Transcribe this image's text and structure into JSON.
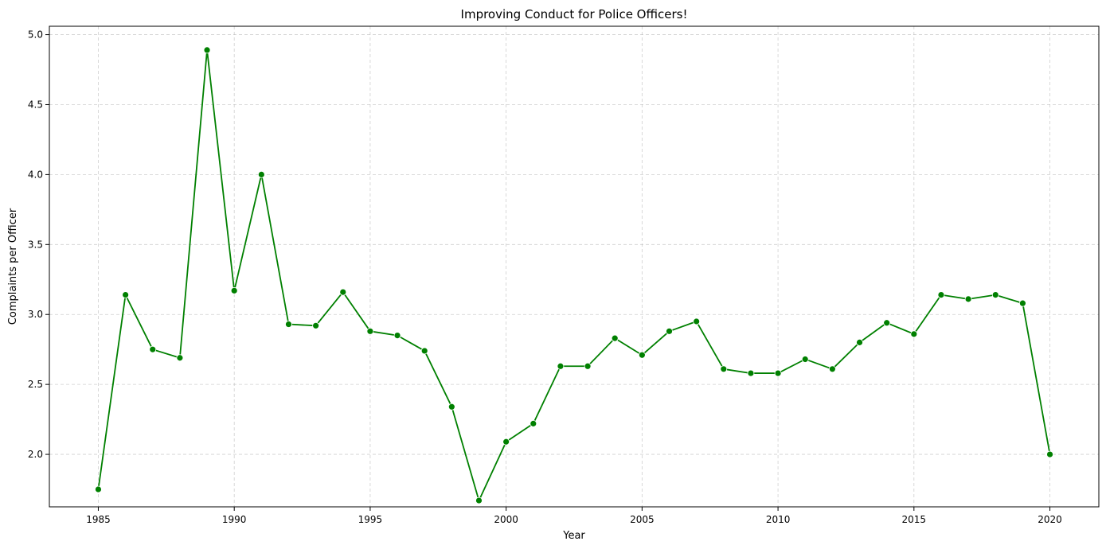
{
  "chart_data": {
    "type": "line",
    "title": "Improving Conduct for Police Officers!",
    "xlabel": "Year",
    "ylabel": "Complaints per Officer",
    "xlim": [
      1983.2,
      2021.8
    ],
    "ylim": [
      1.625,
      5.06
    ],
    "grid": true,
    "color": "#008000",
    "marker": "circle",
    "x_ticks": [
      1985,
      1990,
      1995,
      2000,
      2005,
      2010,
      2015,
      2020
    ],
    "x_tick_labels": [
      "1985",
      "1990",
      "1995",
      "2000",
      "2005",
      "2010",
      "2015",
      "2020"
    ],
    "y_ticks": [
      2.0,
      2.5,
      3.0,
      3.5,
      4.0,
      4.5,
      5.0
    ],
    "y_tick_labels": [
      "2.0",
      "2.5",
      "3.0",
      "3.5",
      "4.0",
      "4.5",
      "5.0"
    ],
    "series": [
      {
        "name": "Complaints per Officer",
        "x": [
          1985,
          1986,
          1987,
          1988,
          1989,
          1990,
          1991,
          1992,
          1993,
          1994,
          1995,
          1996,
          1997,
          1998,
          1999,
          2000,
          2001,
          2002,
          2003,
          2004,
          2005,
          2006,
          2007,
          2008,
          2009,
          2010,
          2011,
          2012,
          2013,
          2014,
          2015,
          2016,
          2017,
          2018,
          2019,
          2020
        ],
        "values": [
          1.75,
          3.14,
          2.75,
          2.69,
          4.89,
          3.17,
          4.0,
          2.93,
          2.92,
          3.16,
          2.88,
          2.85,
          2.74,
          2.34,
          1.67,
          2.09,
          2.22,
          2.63,
          2.63,
          2.83,
          2.71,
          2.88,
          2.95,
          2.61,
          2.58,
          2.58,
          2.68,
          2.61,
          2.8,
          2.94,
          2.86,
          3.14,
          3.11,
          3.14,
          3.08,
          2.0
        ]
      }
    ]
  }
}
